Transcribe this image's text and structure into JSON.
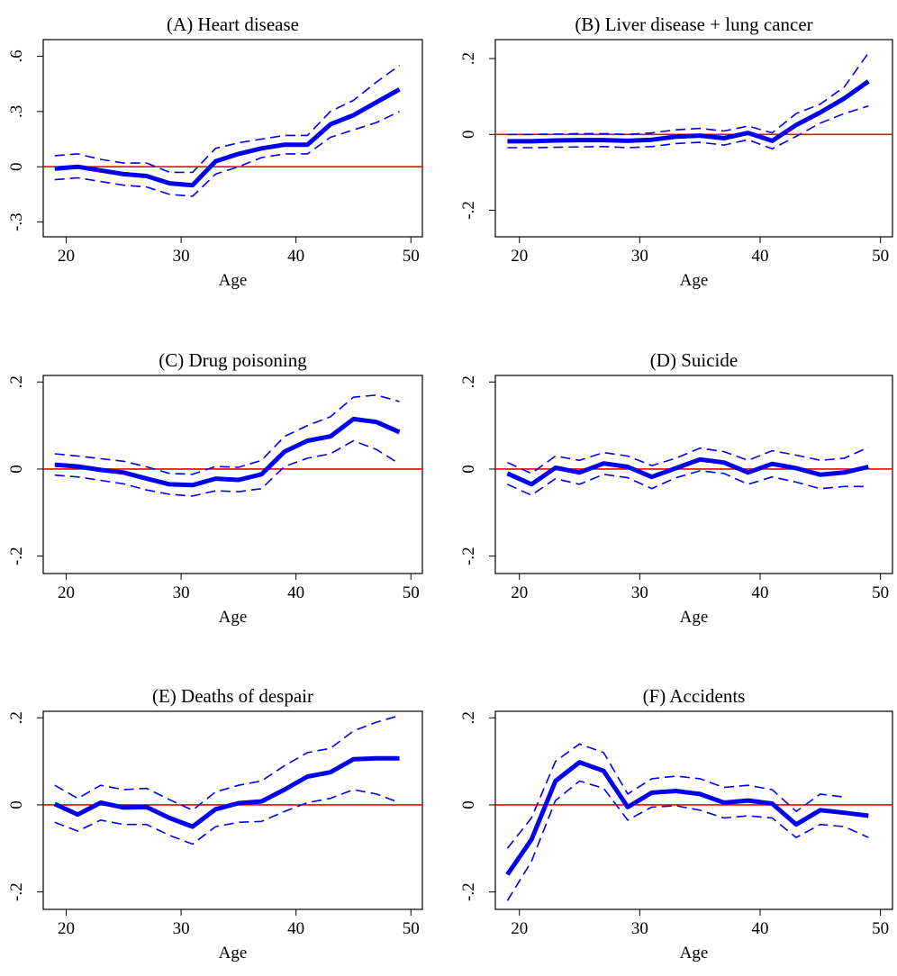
{
  "figure": {
    "xlabel": "Age",
    "x_ticks": [
      20,
      30,
      40,
      50
    ],
    "colors": {
      "estimate": "#0000ee",
      "ci": "#0000ee",
      "zero_line": "#ff0000",
      "axis": "#000000"
    }
  },
  "chart_data": [
    {
      "type": "line",
      "title": "(A) Heart disease",
      "xlabel": "Age",
      "ylabel": "",
      "xlim": [
        18,
        51
      ],
      "ylim": [
        -0.38,
        0.69
      ],
      "y_ticks": [
        -0.3,
        0,
        0.3,
        0.6
      ],
      "y_tick_labels": [
        "-.3",
        "0",
        ".3",
        ".6"
      ],
      "reference_line": 0,
      "x": [
        19,
        21,
        23,
        25,
        27,
        29,
        31,
        33,
        35,
        37,
        39,
        41,
        43,
        45,
        47,
        49
      ],
      "series": [
        {
          "role": "estimate",
          "style": "solid-thick",
          "values": [
            -0.01,
            0.0,
            -0.02,
            -0.04,
            -0.05,
            -0.09,
            -0.1,
            0.03,
            0.07,
            0.1,
            0.12,
            0.12,
            0.23,
            0.28,
            0.35,
            0.42
          ]
        },
        {
          "role": "ci-upper",
          "style": "dashed",
          "values": [
            0.06,
            0.07,
            0.04,
            0.02,
            0.02,
            -0.03,
            -0.03,
            0.1,
            0.13,
            0.15,
            0.17,
            0.17,
            0.3,
            0.36,
            0.46,
            0.55
          ]
        },
        {
          "role": "ci-lower",
          "style": "dashed",
          "values": [
            -0.07,
            -0.06,
            -0.08,
            -0.1,
            -0.11,
            -0.15,
            -0.16,
            -0.04,
            0.0,
            0.05,
            0.07,
            0.07,
            0.16,
            0.2,
            0.24,
            0.3
          ]
        }
      ]
    },
    {
      "type": "line",
      "title": "(B) Liver disease + lung cancer",
      "xlabel": "Age",
      "ylabel": "",
      "xlim": [
        18,
        51
      ],
      "ylim": [
        -0.27,
        0.25
      ],
      "y_ticks": [
        -0.2,
        0,
        0.2
      ],
      "y_tick_labels": [
        "-.2",
        "0",
        ".2"
      ],
      "reference_line": 0,
      "x": [
        19,
        21,
        23,
        25,
        27,
        29,
        31,
        33,
        35,
        37,
        39,
        41,
        43,
        45,
        47,
        49
      ],
      "series": [
        {
          "role": "estimate",
          "style": "solid-thick",
          "values": [
            -0.018,
            -0.018,
            -0.016,
            -0.015,
            -0.015,
            -0.017,
            -0.014,
            -0.006,
            -0.003,
            -0.01,
            0.004,
            -0.017,
            0.025,
            0.058,
            0.095,
            0.14
          ]
        },
        {
          "role": "ci-upper",
          "style": "dashed",
          "values": [
            0.0,
            0.0,
            0.001,
            0.002,
            0.002,
            0.0,
            0.004,
            0.012,
            0.016,
            0.009,
            0.022,
            0.004,
            0.055,
            0.08,
            0.125,
            0.215
          ]
        },
        {
          "role": "ci-lower",
          "style": "dashed",
          "values": [
            -0.035,
            -0.035,
            -0.034,
            -0.033,
            -0.032,
            -0.035,
            -0.032,
            -0.024,
            -0.021,
            -0.028,
            -0.014,
            -0.038,
            -0.005,
            0.03,
            0.055,
            0.075
          ]
        }
      ]
    },
    {
      "type": "line",
      "title": "(C) Drug poisoning",
      "xlabel": "Age",
      "ylabel": "",
      "xlim": [
        18,
        51
      ],
      "ylim": [
        -0.24,
        0.215
      ],
      "y_ticks": [
        -0.2,
        0,
        0.2
      ],
      "y_tick_labels": [
        "-.2",
        "0",
        ".2"
      ],
      "reference_line": 0,
      "x": [
        19,
        21,
        23,
        25,
        27,
        29,
        31,
        33,
        35,
        37,
        39,
        41,
        43,
        45,
        47,
        49
      ],
      "series": [
        {
          "role": "estimate",
          "style": "solid-thick",
          "values": [
            0.01,
            0.006,
            -0.002,
            -0.008,
            -0.022,
            -0.035,
            -0.037,
            -0.022,
            -0.025,
            -0.012,
            0.04,
            0.065,
            0.075,
            0.115,
            0.108,
            0.085
          ]
        },
        {
          "role": "ci-upper",
          "style": "dashed",
          "values": [
            0.035,
            0.03,
            0.024,
            0.018,
            0.005,
            -0.01,
            -0.012,
            0.006,
            0.004,
            0.02,
            0.075,
            0.1,
            0.12,
            0.165,
            0.17,
            0.155
          ]
        },
        {
          "role": "ci-lower",
          "style": "dashed",
          "values": [
            -0.014,
            -0.018,
            -0.026,
            -0.034,
            -0.048,
            -0.058,
            -0.062,
            -0.05,
            -0.052,
            -0.045,
            0.006,
            0.025,
            0.035,
            0.065,
            0.045,
            0.012
          ]
        }
      ]
    },
    {
      "type": "line",
      "title": "(D) Suicide",
      "xlabel": "Age",
      "ylabel": "",
      "xlim": [
        18,
        51
      ],
      "ylim": [
        -0.24,
        0.215
      ],
      "y_ticks": [
        -0.2,
        0,
        0.2
      ],
      "y_tick_labels": [
        "-.2",
        "0",
        ".2"
      ],
      "reference_line": 0,
      "x": [
        19,
        21,
        23,
        25,
        27,
        29,
        31,
        33,
        35,
        37,
        39,
        41,
        43,
        45,
        47,
        49
      ],
      "series": [
        {
          "role": "estimate",
          "style": "solid-thick",
          "values": [
            -0.01,
            -0.035,
            0.003,
            -0.008,
            0.013,
            0.005,
            -0.018,
            0.002,
            0.022,
            0.015,
            -0.008,
            0.012,
            0.002,
            -0.013,
            -0.008,
            0.005
          ]
        },
        {
          "role": "ci-upper",
          "style": "dashed",
          "values": [
            0.015,
            -0.01,
            0.03,
            0.02,
            0.038,
            0.03,
            0.008,
            0.025,
            0.048,
            0.04,
            0.02,
            0.042,
            0.032,
            0.02,
            0.025,
            0.05
          ]
        },
        {
          "role": "ci-lower",
          "style": "dashed",
          "values": [
            -0.035,
            -0.06,
            -0.022,
            -0.035,
            -0.012,
            -0.02,
            -0.045,
            -0.02,
            -0.004,
            -0.01,
            -0.035,
            -0.018,
            -0.03,
            -0.045,
            -0.04,
            -0.04
          ]
        }
      ]
    },
    {
      "type": "line",
      "title": "(E) Deaths of despair",
      "xlabel": "Age",
      "ylabel": "",
      "xlim": [
        18,
        51
      ],
      "ylim": [
        -0.24,
        0.215
      ],
      "y_ticks": [
        -0.2,
        0,
        0.2
      ],
      "y_tick_labels": [
        "-.2",
        "0",
        ".2"
      ],
      "reference_line": 0,
      "x": [
        19,
        21,
        23,
        25,
        27,
        29,
        31,
        33,
        35,
        37,
        39,
        41,
        43,
        45,
        47,
        49
      ],
      "series": [
        {
          "role": "estimate",
          "style": "solid-thick",
          "values": [
            0.002,
            -0.022,
            0.005,
            -0.006,
            -0.005,
            -0.03,
            -0.05,
            -0.01,
            0.004,
            0.008,
            0.035,
            0.065,
            0.075,
            0.105,
            0.107,
            0.107
          ]
        },
        {
          "role": "ci-upper",
          "style": "dashed",
          "values": [
            0.045,
            0.015,
            0.045,
            0.035,
            0.038,
            0.012,
            -0.012,
            0.03,
            0.045,
            0.055,
            0.09,
            0.12,
            0.13,
            0.17,
            0.19,
            0.205
          ]
        },
        {
          "role": "ci-lower",
          "style": "dashed",
          "values": [
            -0.04,
            -0.06,
            -0.035,
            -0.045,
            -0.045,
            -0.07,
            -0.09,
            -0.05,
            -0.04,
            -0.038,
            -0.015,
            0.005,
            0.015,
            0.035,
            0.025,
            0.005
          ]
        }
      ]
    },
    {
      "type": "line",
      "title": "(F) Accidents",
      "xlabel": "Age",
      "ylabel": "",
      "xlim": [
        18,
        51
      ],
      "ylim": [
        -0.24,
        0.215
      ],
      "y_ticks": [
        -0.2,
        0,
        0.2
      ],
      "y_tick_labels": [
        "-.2",
        "0",
        ".2"
      ],
      "reference_line": 0,
      "x": [
        19,
        21,
        23,
        25,
        27,
        29,
        31,
        33,
        35,
        37,
        39,
        41,
        43,
        45,
        47,
        49
      ],
      "series": [
        {
          "role": "estimate",
          "style": "solid-thick",
          "values": [
            -0.16,
            -0.08,
            0.055,
            0.098,
            0.078,
            -0.005,
            0.028,
            0.032,
            0.025,
            0.005,
            0.01,
            0.003,
            -0.045,
            -0.012,
            -0.018,
            -0.025
          ]
        },
        {
          "role": "ci-upper",
          "style": "dashed",
          "values": [
            -0.1,
            -0.03,
            0.1,
            0.14,
            0.12,
            0.025,
            0.06,
            0.066,
            0.06,
            0.04,
            0.045,
            0.035,
            -0.015,
            0.025,
            0.018,
            null
          ]
        },
        {
          "role": "ci-lower",
          "style": "dashed",
          "values": [
            -0.22,
            -0.13,
            0.01,
            0.055,
            0.038,
            -0.035,
            -0.005,
            -0.002,
            -0.012,
            -0.03,
            -0.025,
            -0.03,
            -0.075,
            -0.045,
            -0.05,
            -0.075
          ]
        }
      ]
    }
  ]
}
